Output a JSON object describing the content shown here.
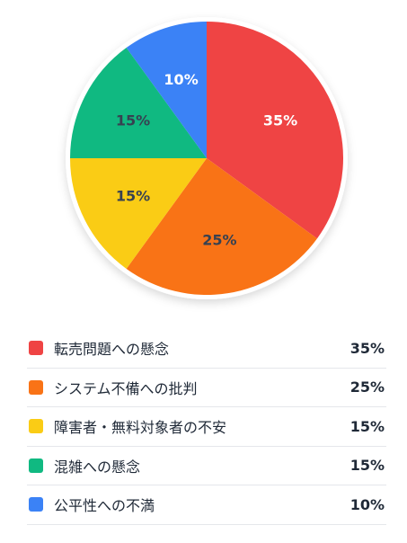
{
  "chart_data": {
    "type": "pie",
    "categories": [
      "転売問題への懸念",
      "システム不備への批判",
      "障害者・無料対象者の不安",
      "混雑への懸念",
      "公平性への不満"
    ],
    "values": [
      35,
      25,
      15,
      15,
      10
    ],
    "value_labels": [
      "35%",
      "25%",
      "15%",
      "15%",
      "10%"
    ],
    "colors": [
      "#ef4444",
      "#f97316",
      "#facc15",
      "#10b981",
      "#3b82f6"
    ],
    "slice_label_colors": [
      "#ffffff",
      "#374151",
      "#374151",
      "#374151",
      "#ffffff"
    ],
    "start": "top",
    "direction": "clockwise",
    "legend_placement": "bottom"
  },
  "legend": {
    "items": [
      {
        "label": "転売問題への懸念",
        "value": "35%"
      },
      {
        "label": "システム不備への批判",
        "value": "25%"
      },
      {
        "label": "障害者・無料対象者の不安",
        "value": "15%"
      },
      {
        "label": "混雑への懸念",
        "value": "15%"
      },
      {
        "label": "公平性への不満",
        "value": "10%"
      }
    ]
  }
}
